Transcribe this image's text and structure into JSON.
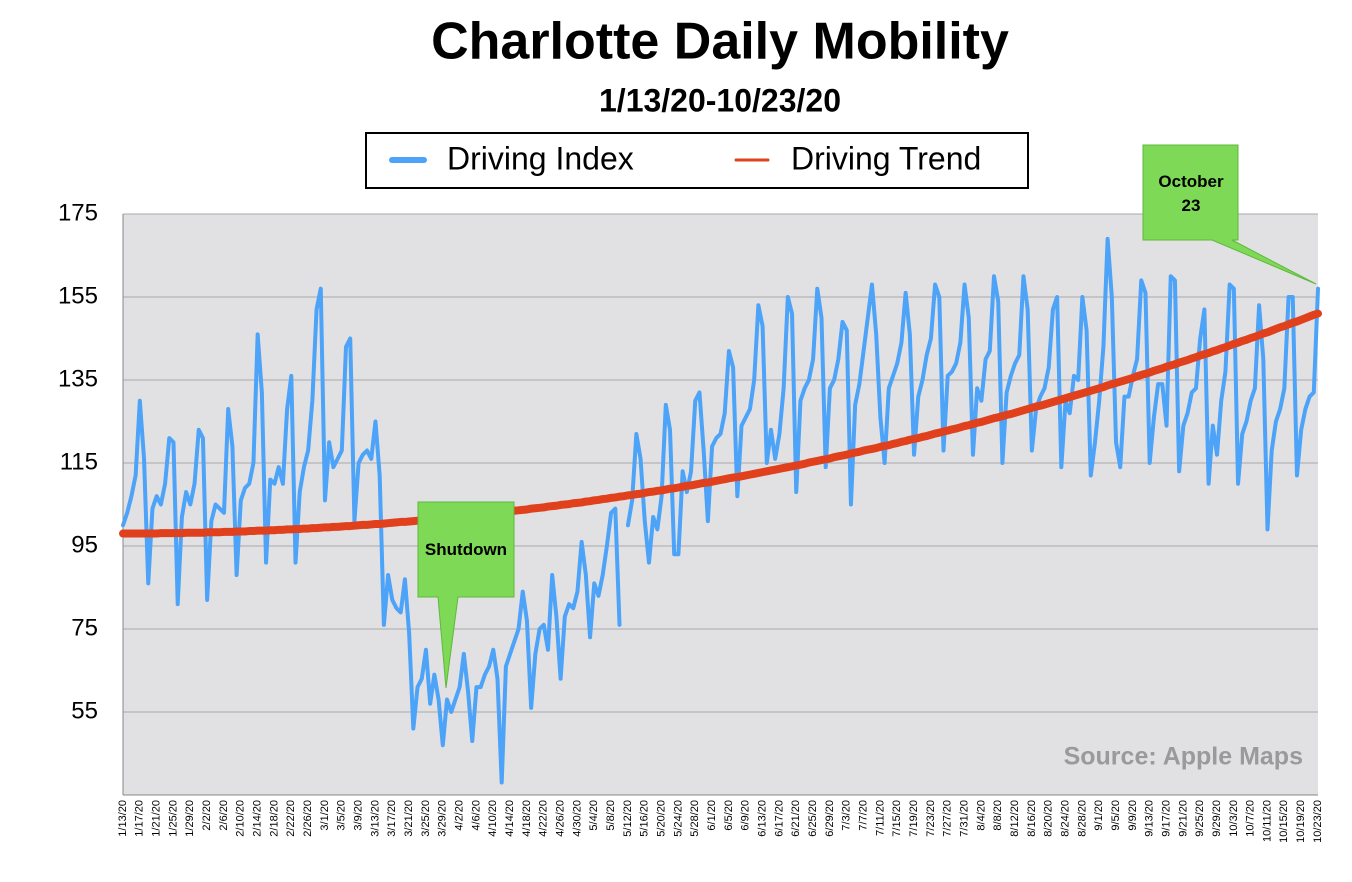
{
  "chart_data": {
    "type": "line",
    "title": "Charlotte Daily Mobility",
    "subtitle": "1/13/20-10/23/20",
    "annotations": [
      "Shutdown",
      "October 23",
      "Source: Apple Maps"
    ],
    "legend": "top",
    "grid": true,
    "ylim": [
      35,
      175
    ],
    "yticks": [
      55,
      75,
      95,
      115,
      135,
      155,
      175
    ],
    "categories": [
      "1/13/20",
      null,
      null,
      null,
      "1/17/20",
      null,
      null,
      null,
      "1/21/20",
      null,
      null,
      null,
      "1/25/20",
      null,
      null,
      null,
      "1/29/20",
      null,
      null,
      null,
      "2/2/20",
      null,
      null,
      null,
      "2/6/20",
      null,
      null,
      null,
      "2/10/20",
      null,
      null,
      null,
      "2/14/20",
      null,
      null,
      null,
      "2/18/20",
      null,
      null,
      null,
      "2/22/20",
      null,
      null,
      null,
      "2/26/20",
      null,
      null,
      null,
      "3/1/20",
      null,
      null,
      null,
      "3/5/20",
      null,
      null,
      null,
      "3/9/20",
      null,
      null,
      null,
      "3/13/20",
      null,
      null,
      null,
      "3/17/20",
      null,
      null,
      null,
      "3/21/20",
      null,
      null,
      null,
      "3/25/20",
      null,
      null,
      null,
      "3/29/20",
      null,
      null,
      null,
      "4/2/20",
      null,
      null,
      null,
      "4/6/20",
      null,
      null,
      null,
      "4/10/20",
      null,
      null,
      null,
      "4/14/20",
      null,
      null,
      null,
      "4/18/20",
      null,
      null,
      null,
      "4/22/20",
      null,
      null,
      null,
      "4/26/20",
      null,
      null,
      null,
      "4/30/20",
      null,
      null,
      null,
      "5/4/20",
      null,
      null,
      null,
      "5/8/20",
      null,
      null,
      null,
      "5/12/20",
      null,
      null,
      null,
      "5/16/20",
      null,
      null,
      null,
      "5/20/20",
      null,
      null,
      null,
      "5/24/20",
      null,
      null,
      null,
      "5/28/20",
      null,
      null,
      null,
      "6/1/20",
      null,
      null,
      null,
      "6/5/20",
      null,
      null,
      null,
      "6/9/20",
      null,
      null,
      null,
      "6/13/20",
      null,
      null,
      null,
      "6/17/20",
      null,
      null,
      null,
      "6/21/20",
      null,
      null,
      null,
      "6/25/20",
      null,
      null,
      null,
      "6/29/20",
      null,
      null,
      null,
      "7/3/20",
      null,
      null,
      null,
      "7/7/20",
      null,
      null,
      null,
      "7/11/20",
      null,
      null,
      null,
      "7/15/20",
      null,
      null,
      null,
      "7/19/20",
      null,
      null,
      null,
      "7/23/20",
      null,
      null,
      null,
      "7/27/20",
      null,
      null,
      null,
      "7/31/20",
      null,
      null,
      null,
      "8/4/20",
      null,
      null,
      null,
      "8/8/20",
      null,
      null,
      null,
      "8/12/20",
      null,
      null,
      null,
      "8/16/20",
      null,
      null,
      null,
      "8/20/20",
      null,
      null,
      null,
      "8/24/20",
      null,
      null,
      null,
      "8/28/20",
      null,
      null,
      null,
      "9/1/20",
      null,
      null,
      null,
      "9/5/20",
      null,
      null,
      null,
      "9/9/20",
      null,
      null,
      null,
      "9/13/20",
      null,
      null,
      null,
      "9/17/20",
      null,
      null,
      null,
      "9/21/20",
      null,
      null,
      null,
      "9/25/20",
      null,
      null,
      null,
      "9/29/20",
      null,
      null,
      null,
      "10/3/20",
      null,
      null,
      null,
      "10/7/20",
      null,
      null,
      null,
      "10/11/20",
      null,
      null,
      null,
      "10/15/20",
      null,
      null,
      null,
      "10/19/20",
      null,
      null,
      null,
      "10/23/20"
    ],
    "series": [
      {
        "name": "Driving Index",
        "color": "#4ca3f7",
        "values": [
          100,
          103,
          107,
          112,
          130,
          116,
          86,
          104,
          107,
          105,
          110,
          121,
          120,
          81,
          102,
          108,
          105,
          110,
          123,
          121,
          82,
          101,
          105,
          104,
          103,
          128,
          119,
          88,
          106,
          109,
          110,
          115,
          146,
          132,
          91,
          111,
          110,
          114,
          110,
          128,
          136,
          91,
          108,
          114,
          118,
          130,
          152,
          157,
          106,
          120,
          114,
          116,
          118,
          143,
          145,
          101,
          115,
          117,
          118,
          116,
          125,
          112,
          76,
          88,
          82,
          80,
          79,
          87,
          74,
          51,
          61,
          63,
          70,
          57,
          64,
          58,
          47,
          58,
          55,
          58,
          61,
          69,
          60,
          48,
          61,
          61,
          64,
          66,
          70,
          63,
          38,
          66,
          69,
          72,
          75,
          84,
          77,
          56,
          69,
          75,
          76,
          70,
          88,
          78,
          63,
          78,
          81,
          80,
          84,
          96,
          88,
          73,
          86,
          83,
          88,
          95,
          103,
          104,
          76,
          null,
          100,
          106,
          122,
          116,
          101,
          91,
          102,
          99,
          107,
          129,
          123,
          93,
          93,
          113,
          108,
          113,
          130,
          132,
          118,
          101,
          119,
          121,
          122,
          127,
          142,
          138,
          107,
          124,
          126,
          128,
          135,
          153,
          148,
          115,
          123,
          116,
          122,
          133,
          155,
          151,
          108,
          130,
          133,
          135,
          140,
          157,
          150,
          114,
          133,
          135,
          140,
          149,
          147,
          105,
          129,
          134,
          142,
          150,
          158,
          146,
          126,
          115,
          133,
          136,
          139,
          144,
          156,
          146,
          117,
          131,
          135,
          141,
          145,
          158,
          155,
          118,
          136,
          137,
          139,
          144,
          158,
          150,
          117,
          133,
          130,
          140,
          142,
          160,
          154,
          115,
          132,
          136,
          139,
          141,
          160,
          152,
          118,
          128,
          131,
          133,
          138,
          152,
          155,
          114,
          130,
          127,
          136,
          135,
          155,
          147,
          112,
          120,
          130,
          143,
          169,
          155,
          120,
          114,
          131,
          131,
          136,
          140,
          159,
          156,
          115,
          126,
          134,
          134,
          124,
          160,
          159,
          113,
          124,
          127,
          132,
          133,
          145,
          152,
          110,
          124,
          117,
          130,
          137,
          158,
          157,
          110,
          122,
          125,
          130,
          133,
          153,
          140,
          99,
          118,
          125,
          128,
          133,
          155,
          155,
          112,
          123,
          128,
          131,
          132,
          157
        ]
      },
      {
        "name": "Driving Trend",
        "color": "#e0401c",
        "values": [
          98.0,
          98.0,
          98.0,
          98.0,
          98.0,
          98.0,
          98.0,
          98.0,
          98.0,
          98.1,
          98.1,
          98.1,
          98.1,
          98.1,
          98.1,
          98.2,
          98.2,
          98.2,
          98.2,
          98.2,
          98.3,
          98.3,
          98.3,
          98.3,
          98.4,
          98.4,
          98.4,
          98.5,
          98.5,
          98.5,
          98.6,
          98.6,
          98.7,
          98.7,
          98.7,
          98.8,
          98.8,
          98.9,
          98.9,
          99.0,
          99.0,
          99.1,
          99.1,
          99.2,
          99.2,
          99.3,
          99.3,
          99.4,
          99.5,
          99.5,
          99.6,
          99.6,
          99.7,
          99.8,
          99.8,
          99.9,
          100.0,
          100.1,
          100.1,
          100.2,
          100.3,
          100.3,
          100.4,
          100.5,
          100.6,
          100.7,
          100.8,
          100.8,
          100.9,
          101.0,
          101.1,
          101.2,
          101.3,
          101.4,
          101.5,
          101.6,
          101.7,
          101.8,
          101.9,
          101.9,
          102.0,
          102.1,
          102.3,
          102.4,
          102.5,
          102.6,
          102.7,
          102.8,
          102.9,
          103.0,
          103.1,
          103.2,
          103.4,
          103.5,
          103.6,
          103.7,
          103.8,
          104.0,
          104.1,
          104.2,
          104.3,
          104.5,
          104.6,
          104.7,
          104.9,
          105.0,
          105.1,
          105.3,
          105.4,
          105.5,
          105.7,
          105.8,
          106.0,
          106.1,
          106.3,
          106.4,
          106.6,
          106.7,
          106.9,
          107.0,
          107.2,
          107.3,
          107.5,
          107.6,
          107.8,
          108.0,
          108.1,
          108.3,
          108.4,
          108.6,
          108.8,
          108.9,
          109.1,
          109.3,
          109.5,
          109.6,
          109.8,
          110.0,
          110.2,
          110.3,
          110.5,
          110.7,
          110.9,
          111.1,
          111.3,
          111.5,
          111.6,
          111.8,
          112.0,
          112.2,
          112.4,
          112.6,
          112.8,
          113.0,
          113.2,
          113.4,
          113.6,
          113.8,
          114.0,
          114.2,
          114.4,
          114.6,
          114.8,
          115.1,
          115.3,
          115.5,
          115.7,
          115.9,
          116.1,
          116.4,
          116.6,
          116.8,
          117.0,
          117.3,
          117.5,
          117.7,
          118.0,
          118.2,
          118.4,
          118.6,
          118.9,
          119.1,
          119.3,
          119.6,
          119.8,
          120.1,
          120.3,
          120.6,
          120.8,
          121.0,
          121.3,
          121.5,
          121.8,
          122.1,
          122.3,
          122.6,
          122.8,
          123.1,
          123.3,
          123.6,
          123.9,
          124.1,
          124.4,
          124.7,
          124.9,
          125.2,
          125.5,
          125.8,
          126.0,
          126.3,
          126.6,
          126.8,
          127.1,
          127.4,
          127.7,
          128.0,
          128.3,
          128.6,
          128.8,
          129.1,
          129.4,
          129.7,
          130.0,
          130.3,
          130.6,
          130.9,
          131.2,
          131.5,
          131.8,
          132.1,
          132.4,
          132.7,
          133.0,
          133.3,
          133.7,
          134.0,
          134.3,
          134.6,
          134.9,
          135.2,
          135.5,
          135.9,
          136.2,
          136.5,
          136.8,
          137.2,
          137.5,
          137.8,
          138.2,
          138.5,
          138.8,
          139.2,
          139.5,
          139.8,
          140.2,
          140.5,
          140.9,
          141.2,
          141.5,
          141.9,
          142.2,
          142.6,
          142.9,
          143.3,
          143.7,
          144.0,
          144.4,
          144.7,
          145.1,
          145.4,
          145.8,
          146.2,
          146.5,
          146.9,
          147.3,
          147.7,
          148.0,
          148.4,
          148.8,
          149.1,
          149.5,
          149.9,
          150.3,
          150.7,
          151.0
        ]
      }
    ]
  }
}
